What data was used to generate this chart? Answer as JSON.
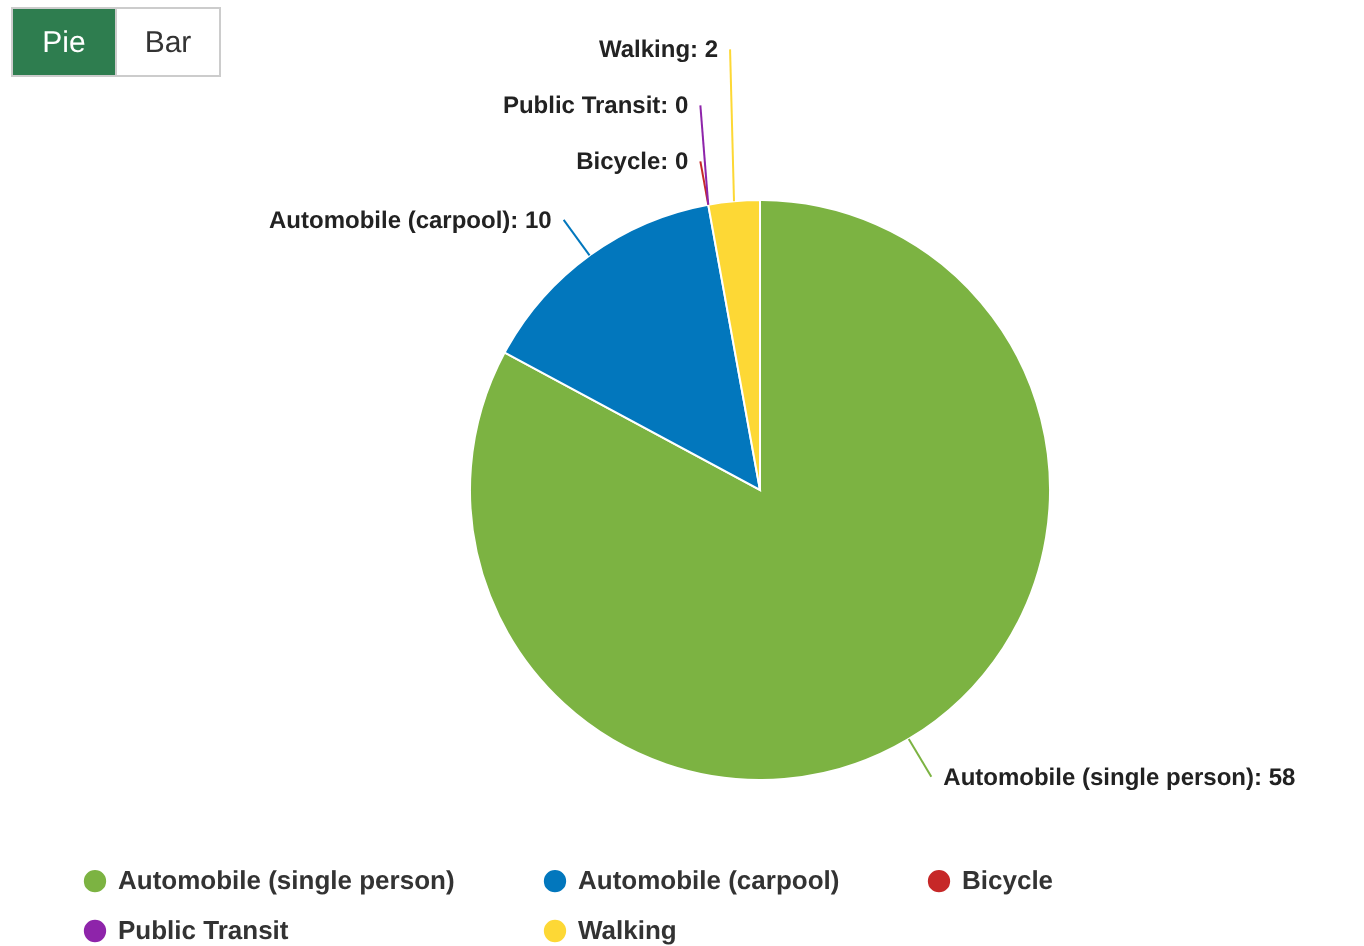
{
  "chart_data": {
    "type": "pie",
    "categories": [
      "Automobile (single person)",
      "Automobile (carpool)",
      "Bicycle",
      "Public Transit",
      "Walking"
    ],
    "values": [
      58,
      10,
      0,
      0,
      2
    ],
    "colors": [
      "#7cb342",
      "#0277bd",
      "#c62828",
      "#8e24aa",
      "#fdd835"
    ],
    "value_labels": [
      "Automobile (single person): 58",
      "Automobile (carpool): 10",
      "Bicycle: 0",
      "Public Transit: 0",
      "Walking: 2"
    ],
    "legend": "bottom",
    "annotations": [
      "Pie",
      "Bar"
    ]
  }
}
